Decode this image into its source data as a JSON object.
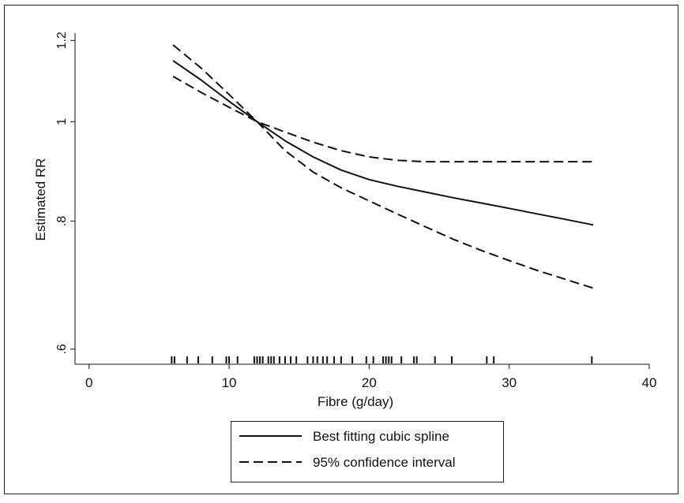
{
  "chart_data": {
    "type": "line",
    "xlabel": "Fibre (g/day)",
    "ylabel": "Estimated RR",
    "xlim": [
      -1,
      40
    ],
    "ylim": [
      0.58,
      1.22
    ],
    "y_scale": "log",
    "grid": false,
    "legend_position": "bottom",
    "x_ticks": [
      0,
      10,
      20,
      30,
      40
    ],
    "x_tick_labels": [
      "0",
      "10",
      "20",
      "30",
      "40"
    ],
    "y_ticks": [
      0.6,
      0.8,
      1.0,
      1.2
    ],
    "y_tick_labels": [
      ".6",
      ".8",
      "1",
      "1.2"
    ],
    "series": [
      {
        "name": "Best fitting cubic spline",
        "style": "solid",
        "x": [
          6,
          8,
          10,
          12,
          14,
          16,
          18,
          20,
          22,
          24,
          26,
          28,
          30,
          32,
          34,
          36
        ],
        "y": [
          1.147,
          1.098,
          1.047,
          1.0,
          0.958,
          0.924,
          0.897,
          0.878,
          0.865,
          0.854,
          0.843,
          0.833,
          0.823,
          0.813,
          0.803,
          0.793
        ]
      },
      {
        "name": "95% confidence interval",
        "style": "dashed",
        "x": [
          6,
          8,
          10,
          12,
          14,
          16,
          18,
          20,
          22,
          24,
          26,
          28,
          30,
          32,
          34,
          36
        ],
        "y": [
          1.107,
          1.068,
          1.033,
          1.0,
          0.977,
          0.955,
          0.937,
          0.924,
          0.917,
          0.914,
          0.914,
          0.914,
          0.914,
          0.914,
          0.914,
          0.914
        ]
      },
      {
        "name": "95% confidence interval",
        "style": "dashed",
        "x": [
          6,
          8,
          10,
          12,
          14,
          16,
          18,
          20,
          22,
          24,
          26,
          28,
          30,
          32,
          34,
          36
        ],
        "y": [
          1.188,
          1.128,
          1.063,
          1.0,
          0.937,
          0.893,
          0.862,
          0.837,
          0.813,
          0.79,
          0.768,
          0.749,
          0.732,
          0.716,
          0.702,
          0.688
        ]
      }
    ],
    "rug_x": [
      5.9,
      6.1,
      7.0,
      7.8,
      8.8,
      9.8,
      10.0,
      10.6,
      11.8,
      12.0,
      12.2,
      12.4,
      12.8,
      13.0,
      13.2,
      13.6,
      14.0,
      14.4,
      14.8,
      15.6,
      16.0,
      16.3,
      16.7,
      17.0,
      17.5,
      18.0,
      18.8,
      19.8,
      20.3,
      21.0,
      21.2,
      21.4,
      21.6,
      22.3,
      23.2,
      23.4,
      24.7,
      25.9,
      28.4,
      28.9,
      35.9
    ],
    "legend": [
      {
        "label": "Best fitting cubic spline",
        "style": "solid"
      },
      {
        "label": "95% confidence interval",
        "style": "dashed"
      }
    ]
  }
}
